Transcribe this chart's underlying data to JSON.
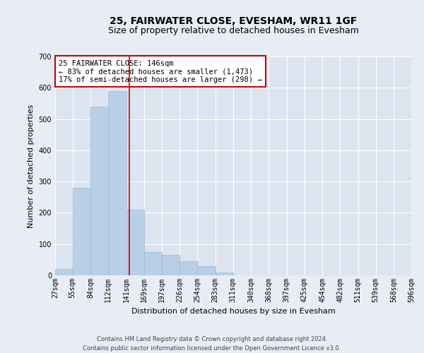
{
  "title": "25, FAIRWATER CLOSE, EVESHAM, WR11 1GF",
  "subtitle": "Size of property relative to detached houses in Evesham",
  "xlabel": "Distribution of detached houses by size in Evesham",
  "ylabel": "Number of detached properties",
  "footer_line1": "Contains HM Land Registry data © Crown copyright and database right 2024.",
  "footer_line2": "Contains public sector information licensed under the Open Government Licence v3.0.",
  "annotation_line1": "25 FAIRWATER CLOSE: 146sqm",
  "annotation_line2": "← 83% of detached houses are smaller (1,473)",
  "annotation_line3": "17% of semi-detached houses are larger (298) →",
  "bar_color": "#b8cfe8",
  "bar_edge_color": "#9ab8d8",
  "vline_color": "#cc0000",
  "vline_x": 146,
  "bin_edges": [
    27,
    55,
    84,
    112,
    141,
    169,
    197,
    226,
    254,
    283,
    311,
    340,
    368,
    397,
    425,
    454,
    482,
    511,
    539,
    568,
    596
  ],
  "bin_values": [
    20,
    280,
    540,
    590,
    210,
    75,
    65,
    45,
    30,
    10,
    0,
    0,
    0,
    0,
    0,
    0,
    0,
    0,
    0,
    0
  ],
  "ylim": [
    0,
    700
  ],
  "yticks": [
    0,
    100,
    200,
    300,
    400,
    500,
    600,
    700
  ],
  "background_color": "#e8edf5",
  "plot_bg_color": "#dce4f0",
  "grid_color": "#ffffff",
  "title_fontsize": 10,
  "subtitle_fontsize": 9,
  "tick_fontsize": 7,
  "label_fontsize": 8,
  "annotation_fontsize": 7.5,
  "footer_fontsize": 6
}
